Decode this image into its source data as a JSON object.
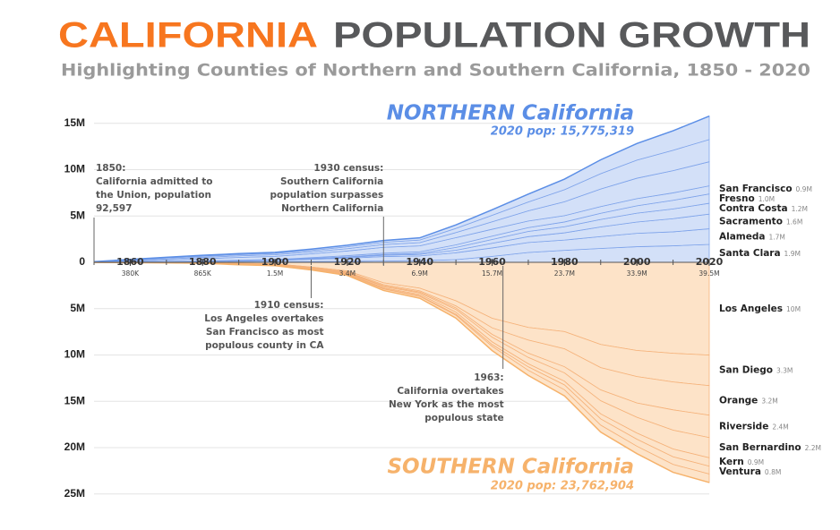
{
  "chart_data": {
    "type": "mirrored-stacked-area",
    "title_parts": [
      "CALIFORNIA",
      "POPULATION GROWTH"
    ],
    "title_colors": [
      "#f7761f",
      "#58595b"
    ],
    "subtitle": "Highlighting Counties of Northern and Southern California, 1850 - 2020",
    "x": [
      1850,
      1860,
      1870,
      1880,
      1890,
      1900,
      1910,
      1920,
      1930,
      1940,
      1950,
      1960,
      1970,
      1980,
      1990,
      2000,
      2010,
      2020
    ],
    "xlim": [
      1850,
      2020
    ],
    "xticks": [
      1860,
      1880,
      1900,
      1920,
      1940,
      1960,
      1980,
      2000,
      2020
    ],
    "xtick_sublabels": [
      "380K",
      "865K",
      "1.5M",
      "3.4M",
      "6.9M",
      "15.7M",
      "23.7M",
      "33.9M",
      "39.5M"
    ],
    "ylim": [
      0,
      16
    ],
    "yticks": [
      0,
      {
        "value": 5,
        "label": "5M"
      },
      {
        "value": 10,
        "label": "10M"
      },
      {
        "value": 15,
        "label": "15M"
      }
    ],
    "y2lim": [
      0,
      25
    ],
    "y2_inverted": true,
    "y2ticks": [
      {
        "value": 5,
        "label": "5M"
      },
      {
        "value": 10,
        "label": "10M"
      },
      {
        "value": 15,
        "label": "15M"
      },
      {
        "value": 20,
        "label": "20M"
      },
      {
        "value": 25,
        "label": "25M"
      }
    ],
    "grid": true,
    "regions": [
      {
        "title": "NORTHERN California",
        "subtitle": "2020 pop: 15,775,319",
        "color": "#5b8ee6",
        "fill": "#d3e0f8",
        "edge": "#7ea3ea"
      },
      {
        "title": "SOUTHERN California",
        "subtitle": "2020 pop: 23,762,904",
        "color": "#f6b26b",
        "fill": "#fde3c8",
        "edge": "#f5b27a",
        "axis": "y2"
      }
    ],
    "series": [
      {
        "name": "Santa Clara",
        "values": [
          0.007,
          0.012,
          0.026,
          0.035,
          0.048,
          0.061,
          0.083,
          0.101,
          0.146,
          0.175,
          0.291,
          0.642,
          1.065,
          1.295,
          1.498,
          1.683,
          1.782,
          1.936
        ],
        "value_labels": [
          null,
          null,
          null,
          null,
          null,
          null,
          null,
          null,
          null,
          null,
          null,
          null,
          null,
          null,
          null,
          null,
          null,
          "1.9M"
        ]
      },
      {
        "name": "Alameda",
        "values": [
          0.0,
          0.009,
          0.025,
          0.063,
          0.094,
          0.131,
          0.246,
          0.345,
          0.474,
          0.513,
          0.74,
          0.908,
          1.073,
          1.105,
          1.279,
          1.444,
          1.51,
          1.682
        ],
        "value_labels": [
          null,
          null,
          null,
          null,
          null,
          null,
          null,
          null,
          null,
          null,
          null,
          null,
          null,
          null,
          null,
          null,
          null,
          "1.7M"
        ]
      },
      {
        "name": "Sacramento",
        "values": [
          0.009,
          0.024,
          0.026,
          0.034,
          0.041,
          0.046,
          0.068,
          0.091,
          0.142,
          0.17,
          0.277,
          0.503,
          0.634,
          0.783,
          1.041,
          1.223,
          1.418,
          1.585
        ],
        "value_labels": [
          null,
          null,
          null,
          null,
          null,
          null,
          null,
          null,
          null,
          null,
          null,
          null,
          null,
          null,
          null,
          null,
          null,
          "1.6M"
        ]
      },
      {
        "name": "Contra Costa",
        "values": [
          0.0,
          0.005,
          0.008,
          0.013,
          0.014,
          0.019,
          0.032,
          0.053,
          0.079,
          0.1,
          0.299,
          0.41,
          0.558,
          0.657,
          0.804,
          0.949,
          1.049,
          1.166
        ],
        "value_labels": [
          null,
          null,
          null,
          null,
          null,
          null,
          null,
          null,
          null,
          null,
          null,
          null,
          null,
          null,
          null,
          null,
          null,
          "1.2M"
        ]
      },
      {
        "name": "Fresno",
        "values": [
          0.0,
          0.004,
          0.006,
          0.01,
          0.033,
          0.038,
          0.075,
          0.128,
          0.145,
          0.179,
          0.277,
          0.366,
          0.413,
          0.515,
          0.668,
          0.799,
          0.93,
          1.009
        ],
        "value_labels": [
          null,
          null,
          null,
          null,
          null,
          null,
          null,
          null,
          null,
          null,
          null,
          null,
          null,
          null,
          null,
          null,
          null,
          "1.0M"
        ]
      },
      {
        "name": "San Francisco",
        "values": [
          0.022,
          0.057,
          0.149,
          0.234,
          0.299,
          0.343,
          0.417,
          0.507,
          0.634,
          0.635,
          0.775,
          0.74,
          0.716,
          0.679,
          0.724,
          0.777,
          0.805,
          0.874
        ],
        "value_labels": [
          null,
          null,
          null,
          null,
          null,
          null,
          null,
          null,
          null,
          null,
          null,
          null,
          null,
          null,
          null,
          null,
          null,
          "0.9M"
        ]
      },
      {
        "values": [
          0.01,
          0.08,
          0.12,
          0.15,
          0.17,
          0.18,
          0.2,
          0.25,
          0.3,
          0.35,
          0.55,
          0.8,
          1.1,
          1.5,
          1.9,
          2.2,
          2.4,
          2.6
        ]
      },
      {
        "values": [
          0.01,
          0.07,
          0.1,
          0.12,
          0.13,
          0.14,
          0.16,
          0.2,
          0.24,
          0.28,
          0.45,
          0.7,
          0.95,
          1.3,
          1.65,
          1.95,
          2.2,
          2.4
        ]
      },
      {
        "values": [
          0.01,
          0.05,
          0.08,
          0.1,
          0.11,
          0.12,
          0.14,
          0.17,
          0.2,
          0.24,
          0.38,
          0.6,
          0.85,
          1.15,
          1.5,
          1.8,
          2.1,
          2.523
        ]
      },
      {
        "name": "Los Angeles",
        "axis": "y2",
        "values": [
          0.004,
          0.011,
          0.015,
          0.033,
          0.101,
          0.17,
          0.504,
          0.936,
          2.208,
          2.786,
          4.152,
          6.039,
          7.032,
          7.478,
          8.863,
          9.519,
          9.819,
          10.014
        ],
        "value_labels": [
          null,
          null,
          null,
          null,
          null,
          null,
          null,
          null,
          null,
          null,
          null,
          null,
          null,
          null,
          null,
          null,
          null,
          "10M"
        ]
      },
      {
        "name": "San Diego",
        "axis": "y2",
        "values": [
          0.001,
          0.004,
          0.005,
          0.008,
          0.035,
          0.035,
          0.061,
          0.112,
          0.21,
          0.289,
          0.557,
          1.033,
          1.358,
          1.862,
          2.498,
          2.814,
          3.095,
          3.298
        ],
        "value_labels": [
          null,
          null,
          null,
          null,
          null,
          null,
          null,
          null,
          null,
          null,
          null,
          null,
          null,
          null,
          null,
          null,
          null,
          "3.3M"
        ]
      },
      {
        "name": "Orange",
        "axis": "y2",
        "values": [
          0.0,
          0.0,
          0.0,
          0.0,
          0.014,
          0.02,
          0.034,
          0.061,
          0.119,
          0.131,
          0.216,
          0.704,
          1.421,
          1.933,
          2.411,
          2.846,
          3.01,
          3.186
        ],
        "value_labels": [
          null,
          null,
          null,
          null,
          null,
          null,
          null,
          null,
          null,
          null,
          null,
          null,
          null,
          null,
          null,
          null,
          null,
          "3.2M"
        ]
      },
      {
        "name": "Riverside",
        "axis": "y2",
        "values": [
          0.0,
          0.0,
          0.0,
          0.0,
          0.018,
          0.018,
          0.035,
          0.05,
          0.081,
          0.106,
          0.17,
          0.306,
          0.459,
          0.663,
          1.17,
          1.545,
          2.19,
          2.418
        ],
        "value_labels": [
          null,
          null,
          null,
          null,
          null,
          null,
          null,
          null,
          null,
          null,
          null,
          null,
          null,
          null,
          null,
          null,
          null,
          "2.4M"
        ]
      },
      {
        "name": "San Bernardino",
        "axis": "y2",
        "values": [
          0.0,
          0.006,
          0.004,
          0.008,
          0.026,
          0.028,
          0.057,
          0.073,
          0.134,
          0.161,
          0.282,
          0.504,
          0.684,
          0.895,
          1.418,
          1.709,
          2.035,
          2.181
        ],
        "value_labels": [
          null,
          null,
          null,
          null,
          null,
          null,
          null,
          null,
          null,
          null,
          null,
          null,
          null,
          null,
          null,
          null,
          null,
          "2.2M"
        ]
      },
      {
        "name": "Kern",
        "axis": "y2",
        "values": [
          0.0,
          0.0,
          0.003,
          0.006,
          0.01,
          0.017,
          0.037,
          0.054,
          0.083,
          0.135,
          0.229,
          0.292,
          0.33,
          0.403,
          0.545,
          0.662,
          0.84,
          0.909
        ],
        "value_labels": [
          null,
          null,
          null,
          null,
          null,
          null,
          null,
          null,
          null,
          null,
          null,
          null,
          null,
          null,
          null,
          null,
          null,
          "0.9M"
        ]
      },
      {
        "name": "Ventura",
        "axis": "y2",
        "values": [
          0.0,
          0.0,
          0.0,
          0.005,
          0.01,
          0.014,
          0.018,
          0.028,
          0.055,
          0.07,
          0.115,
          0.199,
          0.376,
          0.529,
          0.669,
          0.753,
          0.823,
          0.843
        ],
        "value_labels": [
          null,
          null,
          null,
          null,
          null,
          null,
          null,
          null,
          null,
          null,
          null,
          null,
          null,
          null,
          null,
          null,
          null,
          "0.8M"
        ]
      },
      {
        "axis": "y2",
        "values": [
          0.01,
          0.02,
          0.03,
          0.04,
          0.05,
          0.06,
          0.08,
          0.1,
          0.15,
          0.2,
          0.3,
          0.45,
          0.55,
          0.65,
          0.75,
          0.8,
          0.85,
          0.914
        ]
      }
    ],
    "annotations": [
      {
        "x": 1850,
        "lines": [
          "1850:",
          "California admitted to",
          "the Union, population",
          "92,597"
        ]
      },
      {
        "x": 1930,
        "lines": [
          "1930 census:",
          "Southern California",
          "population surpasses",
          "Northern California"
        ]
      },
      {
        "x": 1910,
        "lines": [
          "1910 census:",
          "Los Angeles overtakes",
          "San Francisco as most",
          "populous county in CA"
        ]
      },
      {
        "x": 1963,
        "lines": [
          "1963:",
          "California overtakes",
          "New York as the most",
          "populous state"
        ]
      }
    ]
  }
}
